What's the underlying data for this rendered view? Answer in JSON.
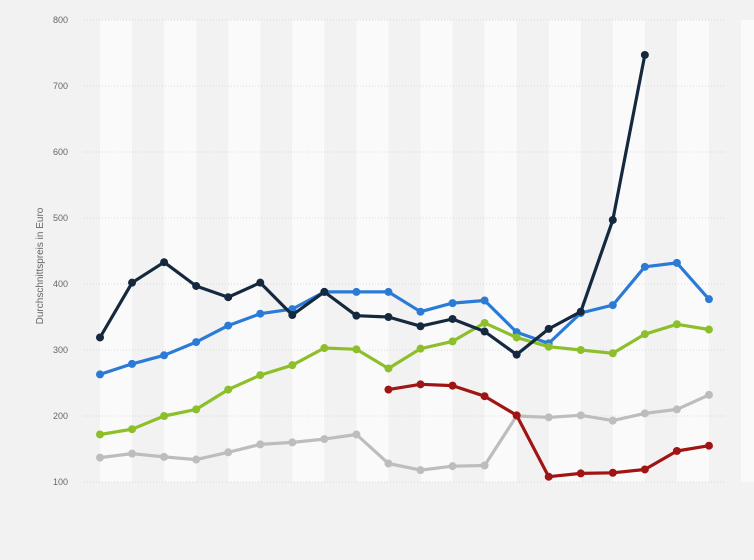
{
  "chart_data": {
    "type": "line",
    "title": "",
    "xlabel": "",
    "ylabel": "Durchschnittspreis in Euro",
    "ylim": [
      100,
      800
    ],
    "yticks": [
      100,
      200,
      300,
      400,
      500,
      600,
      700,
      800
    ],
    "grid": true,
    "legend": "none",
    "x": [
      1,
      2,
      3,
      4,
      5,
      6,
      7,
      8,
      9,
      10,
      11,
      12,
      13,
      14,
      15,
      16,
      17,
      18,
      19,
      20,
      21
    ],
    "series": [
      {
        "color": "#2b7bd6",
        "values": [
          263,
          279,
          292,
          312,
          337,
          355,
          362,
          388,
          388,
          388,
          358,
          371,
          375,
          327,
          310,
          356,
          368,
          426,
          432,
          377,
          null
        ]
      },
      {
        "color": "#8dbf2b",
        "values": [
          172,
          180,
          200,
          210,
          240,
          262,
          277,
          303,
          301,
          272,
          302,
          313,
          341,
          319,
          305,
          300,
          295,
          324,
          339,
          331,
          null
        ]
      },
      {
        "color": "#bdbdbd",
        "values": [
          137,
          143,
          138,
          134,
          145,
          157,
          160,
          165,
          172,
          128,
          118,
          124,
          125,
          200,
          198,
          201,
          193,
          204,
          210,
          232,
          null
        ]
      },
      {
        "color": "#a01414",
        "values": [
          null,
          null,
          null,
          null,
          null,
          null,
          null,
          null,
          null,
          240,
          248,
          246,
          230,
          201,
          108,
          113,
          114,
          119,
          147,
          155,
          null
        ]
      },
      {
        "color": "#14283e",
        "values": [
          319,
          402,
          433,
          397,
          380,
          402,
          353,
          388,
          352,
          350,
          336,
          347,
          328,
          293,
          332,
          358,
          497,
          747,
          null,
          null,
          null
        ]
      }
    ]
  }
}
